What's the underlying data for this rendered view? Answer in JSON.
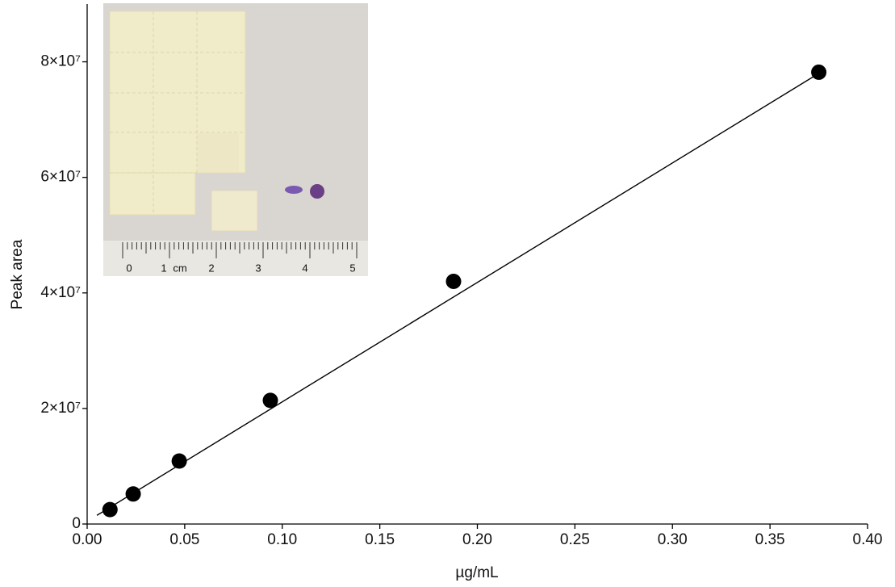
{
  "chart_data": {
    "type": "scatter",
    "x_label": "µg/mL",
    "y_label": "Peak area",
    "x": [
      0.0117,
      0.0236,
      0.0472,
      0.0939,
      0.1878,
      0.375
    ],
    "values": [
      2500000,
      5200000,
      10900000,
      21400000,
      42000000,
      78200000
    ],
    "color": "#000000",
    "fit": {
      "x": [
        0.005,
        0.375
      ],
      "values": [
        1500000,
        78000000
      ]
    },
    "xlim": [
      0,
      0.4
    ],
    "ylim": [
      0,
      90000000
    ],
    "xticks": [
      {
        "value": 0,
        "label": "0.00"
      },
      0.05,
      {
        "value": 0.1,
        "label": "0.10"
      },
      0.15,
      {
        "value": 0.2,
        "label": "0.20"
      },
      0.25,
      {
        "value": 0.3,
        "label": "0.30"
      },
      0.35,
      {
        "value": 0.4,
        "label": "0.40"
      }
    ],
    "yticks": [
      0,
      {
        "value": 20000000,
        "label": "2×10⁷"
      },
      {
        "value": 40000000,
        "label": "4×10⁷"
      },
      {
        "value": 60000000,
        "label": "6×10⁷"
      },
      {
        "value": 80000000,
        "label": "8×10⁷"
      }
    ]
  },
  "inset_photo": {
    "ruler_labels": [
      "0",
      "1",
      "cm",
      "2",
      "3",
      "4",
      "5"
    ]
  }
}
